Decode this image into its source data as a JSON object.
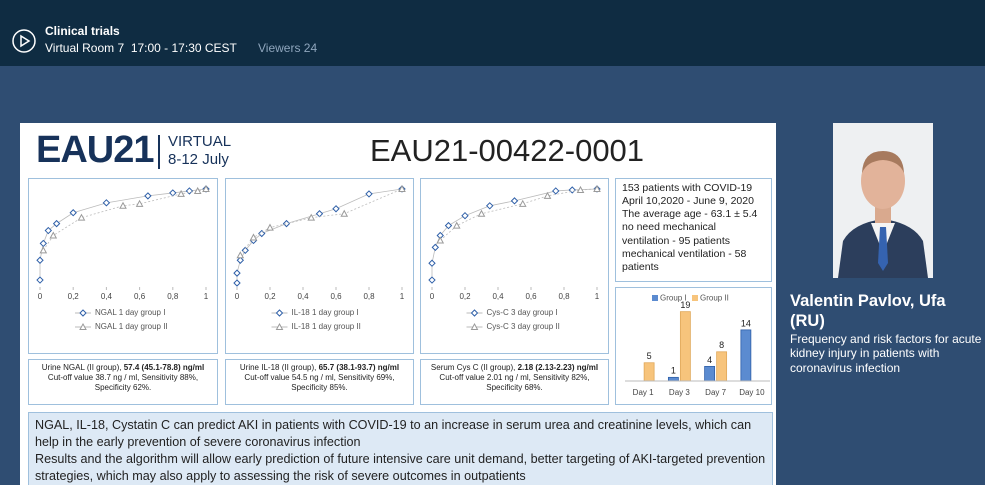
{
  "header": {
    "title": "Clinical trials",
    "room": "Virtual Room 7  17:00 - 17:30 CEST",
    "viewers": "Viewers 24"
  },
  "slide": {
    "logo": "EAU21",
    "virtual": "VIRTUAL",
    "dates": "8-12 July",
    "code": "EAU21-00422-0001",
    "roc_charts": [
      {
        "type": "scatter",
        "xlim": [
          0,
          1
        ],
        "ylim": [
          0,
          1
        ],
        "xticks": [
          0,
          {
            "value": 0.2,
            "label": "0,2"
          },
          {
            "value": 0.4,
            "label": "0,4"
          },
          {
            "value": 0.6,
            "label": "0,6"
          },
          {
            "value": 0.8,
            "label": "0,8"
          },
          1
        ],
        "series": [
          {
            "name": "NGAL 1 day group I",
            "color": "#2e5fa8",
            "x": [
              0,
              0,
              0.02,
              0.05,
              0.1,
              0.2,
              0.4,
              0.65,
              0.8,
              0.9,
              1
            ],
            "values": [
              0.05,
              0.25,
              0.42,
              0.55,
              0.62,
              0.73,
              0.83,
              0.9,
              0.93,
              0.95,
              0.97
            ]
          },
          {
            "name": "NGAL 1 day group II",
            "color": "#9a9a9a",
            "x": [
              0.02,
              0.08,
              0.25,
              0.5,
              0.6,
              0.85,
              0.95,
              1
            ],
            "values": [
              0.35,
              0.5,
              0.68,
              0.8,
              0.82,
              0.92,
              0.95,
              0.97
            ]
          }
        ],
        "result_label": "Urine NGAL (II group),",
        "result": "57.4 (45.1-78.8) ng/ml",
        "cutoff": "Cut-off value 38.7 ng / ml, Sensitivity 88%, Specificity 62%."
      },
      {
        "type": "scatter",
        "xlim": [
          0,
          1
        ],
        "ylim": [
          0,
          1
        ],
        "xticks": [
          0,
          {
            "value": 0.2,
            "label": "0,2"
          },
          {
            "value": 0.4,
            "label": "0,4"
          },
          {
            "value": 0.6,
            "label": "0,6"
          },
          {
            "value": 0.8,
            "label": "0,8"
          },
          1
        ],
        "series": [
          {
            "name": "IL-18 1 day group I",
            "color": "#2e5fa8",
            "x": [
              0,
              0,
              0.02,
              0.05,
              0.1,
              0.15,
              0.3,
              0.5,
              0.6,
              0.8,
              1
            ],
            "values": [
              0.02,
              0.12,
              0.25,
              0.35,
              0.45,
              0.52,
              0.62,
              0.72,
              0.77,
              0.92,
              0.97
            ]
          },
          {
            "name": "IL-18 1 day group II",
            "color": "#9a9a9a",
            "x": [
              0.02,
              0.1,
              0.2,
              0.45,
              0.65,
              1
            ],
            "values": [
              0.3,
              0.48,
              0.58,
              0.68,
              0.72,
              0.97
            ]
          }
        ],
        "result_label": "Urine IL-18 (II group),",
        "result": "65.7 (38.1-93.7) ng/ml",
        "cutoff": "Cut-off value 54.5 ng / ml, Sensitivity 69%, Specificity 85%."
      },
      {
        "type": "scatter",
        "xlim": [
          0,
          1
        ],
        "ylim": [
          0,
          1
        ],
        "xticks": [
          0,
          {
            "value": 0.2,
            "label": "0,2"
          },
          {
            "value": 0.4,
            "label": "0,4"
          },
          {
            "value": 0.6,
            "label": "0,6"
          },
          {
            "value": 0.8,
            "label": "0,8"
          },
          1
        ],
        "series": [
          {
            "name": "Cys-C 3 day group I",
            "color": "#2e5fa8",
            "x": [
              0,
              0,
              0.02,
              0.05,
              0.1,
              0.2,
              0.35,
              0.5,
              0.75,
              0.85,
              1
            ],
            "values": [
              0.05,
              0.22,
              0.38,
              0.5,
              0.6,
              0.7,
              0.8,
              0.85,
              0.95,
              0.96,
              0.97
            ]
          },
          {
            "name": "Cys-C 3 day group II",
            "color": "#9a9a9a",
            "x": [
              0.05,
              0.15,
              0.3,
              0.55,
              0.7,
              0.9,
              1
            ],
            "values": [
              0.45,
              0.6,
              0.72,
              0.82,
              0.9,
              0.96,
              0.97
            ]
          }
        ],
        "result_label": "Serum Cys C (II group),",
        "result": "2.18 (2.13-2.23) ng/ml",
        "cutoff": "Cut-off value 2.01 ng / ml, Sensitivity 82%, Specificity 68%."
      }
    ],
    "info": [
      "153 patients with COVID-19",
      "April 10,2020 - June 9, 2020",
      "The average age - 63.1 ± 5.4",
      "no need mechanical ventilation - 95 patients",
      "mechanical ventilation - 58 patients"
    ],
    "bar_chart": {
      "type": "bar",
      "categories": [
        "Day 1",
        "Day 3",
        "Day 7",
        "Day 10"
      ],
      "ylim": [
        0,
        20
      ],
      "series": [
        {
          "name": "Group I",
          "color": "#5b8bd0",
          "values": [
            null,
            1,
            4,
            14
          ]
        },
        {
          "name": "Group II",
          "color": "#f7c47c",
          "values": [
            5,
            19,
            8,
            null
          ]
        }
      ]
    },
    "conclusions": [
      "NGAL, IL-18, Cystatin C can predict AKI in patients with COVID-19 to an increase in serum urea and creatinine levels, which can help in the early prevention of severe coronavirus infection",
      "Results and the algorithm will allow early prediction of future intensive care unit demand, better targeting of AKI-targeted prevention strategies, which may also apply to assessing the risk of severe outcomes in outpatients"
    ]
  },
  "speaker": {
    "name": "Valentin Pavlov, Ufa (RU)",
    "topic": "Frequency and risk factors for acute kidney injury in patients with coronavirus infection"
  }
}
